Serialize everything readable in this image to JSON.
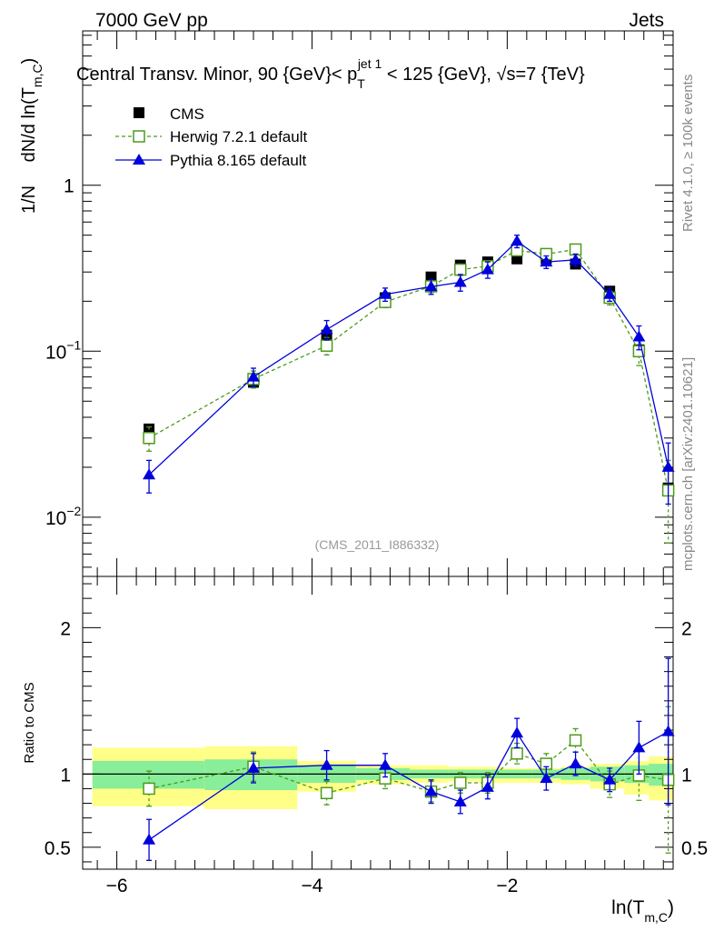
{
  "header": {
    "left": "7000 GeV pp",
    "right": "Jets"
  },
  "title": {
    "prefix": "Central Transv. Minor, 90 {GeV}< p",
    "sub": "T",
    "sup": "jet 1",
    "suffix": " < 125 {GeV}, √s=7 {TeV}"
  },
  "side_labels": {
    "rivet": "Rivet 4.1.0, ≥ 100k events",
    "mcplots": "mcplots.cern.ch [arXiv:2401.10621]"
  },
  "analysis_id": "(CMS_2011_I886332)",
  "colors": {
    "cms": "#000000",
    "herwig": "#4d9a1b",
    "pythia": "#0000dd",
    "band_yellow": "#ffff88",
    "band_green": "#88ee99",
    "side_text": "#888888"
  },
  "chart_data": [
    {
      "type": "line",
      "scale": "log",
      "ylabel_main": "dN/d ln(T",
      "ylabel_sub": "m,C",
      "ylabel_tail": ")",
      "ylabel_prefix": "1/N",
      "xlim": [
        -6.35,
        -0.3
      ],
      "ylim": [
        0.0044,
        8.5
      ],
      "yticks": [
        {
          "value": 0.01,
          "label": "10",
          "exp": "−2"
        },
        {
          "value": 0.1,
          "label": "10",
          "exp": "−1"
        },
        {
          "value": 1,
          "label": "1",
          "exp": ""
        }
      ],
      "x": [
        -5.67,
        -4.6,
        -3.85,
        -3.25,
        -2.78,
        -2.48,
        -2.2,
        -1.9,
        -1.6,
        -1.3,
        -0.95,
        -0.65,
        -0.35
      ],
      "series": [
        {
          "name": "CMS",
          "marker": "square-filled",
          "values": [
            0.034,
            0.065,
            0.125,
            0.21,
            0.28,
            0.33,
            0.345,
            0.36,
            0.36,
            0.335,
            0.23,
            0.102,
            0.015
          ],
          "errors": [
            0.002,
            0.003,
            0.005,
            0.008,
            0.01,
            0.012,
            0.012,
            0.012,
            0.012,
            0.012,
            0.01,
            0.005,
            0.001
          ]
        },
        {
          "name": "Herwig 7.2.1 default",
          "marker": "square-open",
          "style": "dashed",
          "values": [
            0.03,
            0.068,
            0.108,
            0.198,
            0.246,
            0.31,
            0.325,
            0.405,
            0.385,
            0.41,
            0.21,
            0.1,
            0.0145
          ],
          "errors": [
            0.005,
            0.008,
            0.013,
            0.015,
            0.02,
            0.025,
            0.025,
            0.025,
            0.025,
            0.028,
            0.02,
            0.018,
            0.0075
          ]
        },
        {
          "name": "Pythia 8.165 default",
          "marker": "triangle-filled",
          "style": "solid",
          "values": [
            0.018,
            0.07,
            0.135,
            0.22,
            0.245,
            0.26,
            0.31,
            0.46,
            0.345,
            0.355,
            0.22,
            0.122,
            0.02
          ],
          "errors": [
            0.004,
            0.009,
            0.018,
            0.02,
            0.025,
            0.03,
            0.035,
            0.04,
            0.03,
            0.03,
            0.02,
            0.02,
            0.008
          ]
        }
      ]
    },
    {
      "type": "line",
      "ylabel": "Ratio to CMS",
      "xlabel": "ln(T",
      "xlabel_sub": "m,C",
      "xlabel_tail": ")",
      "xlim": [
        -6.35,
        -0.3
      ],
      "ylim": [
        0.35,
        2.35
      ],
      "xticks": [
        -6,
        -4,
        -2
      ],
      "xtick_labels": [
        "−6",
        "−4",
        "−2"
      ],
      "yticks": [
        0.5,
        1,
        2
      ],
      "ytick_labels": [
        "0.5",
        "1",
        "2"
      ],
      "bands": [
        {
          "x0": -6.25,
          "x1": -5.1,
          "y_lo": 0.78,
          "y_hi": 1.18,
          "g_lo": 0.9,
          "g_hi": 1.09
        },
        {
          "x0": -5.1,
          "x1": -4.15,
          "y_lo": 0.76,
          "y_hi": 1.19,
          "g_lo": 0.89,
          "g_hi": 1.1
        },
        {
          "x0": -4.15,
          "x1": -3.55,
          "y_lo": 0.88,
          "y_hi": 1.09,
          "g_lo": 0.94,
          "g_hi": 1.06
        },
        {
          "x0": -3.55,
          "x1": -3.0,
          "y_lo": 0.93,
          "y_hi": 1.06,
          "g_lo": 0.96,
          "g_hi": 1.04
        },
        {
          "x0": -3.0,
          "x1": -2.6,
          "y_lo": 0.94,
          "y_hi": 1.06,
          "g_lo": 0.97,
          "g_hi": 1.03
        },
        {
          "x0": -2.6,
          "x1": -2.3,
          "y_lo": 0.95,
          "y_hi": 1.05,
          "g_lo": 0.97,
          "g_hi": 1.03
        },
        {
          "x0": -2.3,
          "x1": -2.05,
          "y_lo": 0.94,
          "y_hi": 1.05,
          "g_lo": 0.97,
          "g_hi": 1.03
        },
        {
          "x0": -2.05,
          "x1": -1.75,
          "y_lo": 0.94,
          "y_hi": 1.04,
          "g_lo": 0.97,
          "g_hi": 1.03
        },
        {
          "x0": -1.75,
          "x1": -1.45,
          "y_lo": 0.94,
          "y_hi": 1.04,
          "g_lo": 0.97,
          "g_hi": 1.03
        },
        {
          "x0": -1.45,
          "x1": -1.15,
          "y_lo": 0.93,
          "y_hi": 1.05,
          "g_lo": 0.96,
          "g_hi": 1.04
        },
        {
          "x0": -1.15,
          "x1": -0.8,
          "y_lo": 0.9,
          "y_hi": 1.07,
          "g_lo": 0.95,
          "g_hi": 1.05
        },
        {
          "x0": -0.8,
          "x1": -0.55,
          "y_lo": 0.86,
          "y_hi": 1.09,
          "g_lo": 0.94,
          "g_hi": 1.06
        },
        {
          "x0": -0.55,
          "x1": -0.3,
          "y_lo": 0.82,
          "y_hi": 1.12,
          "g_lo": 0.92,
          "g_hi": 1.07
        }
      ],
      "x": [
        -5.67,
        -4.6,
        -3.85,
        -3.25,
        -2.78,
        -2.48,
        -2.2,
        -1.9,
        -1.6,
        -1.3,
        -0.95,
        -0.65,
        -0.35
      ],
      "series": [
        {
          "name": "Herwig 7.2.1 default",
          "values": [
            0.9,
            1.05,
            0.87,
            0.97,
            0.88,
            0.94,
            0.94,
            1.14,
            1.07,
            1.23,
            0.93,
            0.99,
            0.96
          ],
          "errors": [
            0.12,
            0.1,
            0.08,
            0.07,
            0.07,
            0.07,
            0.07,
            0.07,
            0.07,
            0.08,
            0.09,
            0.17,
            0.5
          ]
        },
        {
          "name": "Pythia 8.165 default",
          "values": [
            0.55,
            1.04,
            1.06,
            1.06,
            0.88,
            0.81,
            0.91,
            1.28,
            0.97,
            1.07,
            0.96,
            1.18,
            1.29
          ],
          "errors": [
            0.14,
            0.1,
            0.1,
            0.08,
            0.08,
            0.08,
            0.08,
            0.1,
            0.08,
            0.08,
            0.08,
            0.18,
            0.5
          ]
        }
      ]
    }
  ]
}
